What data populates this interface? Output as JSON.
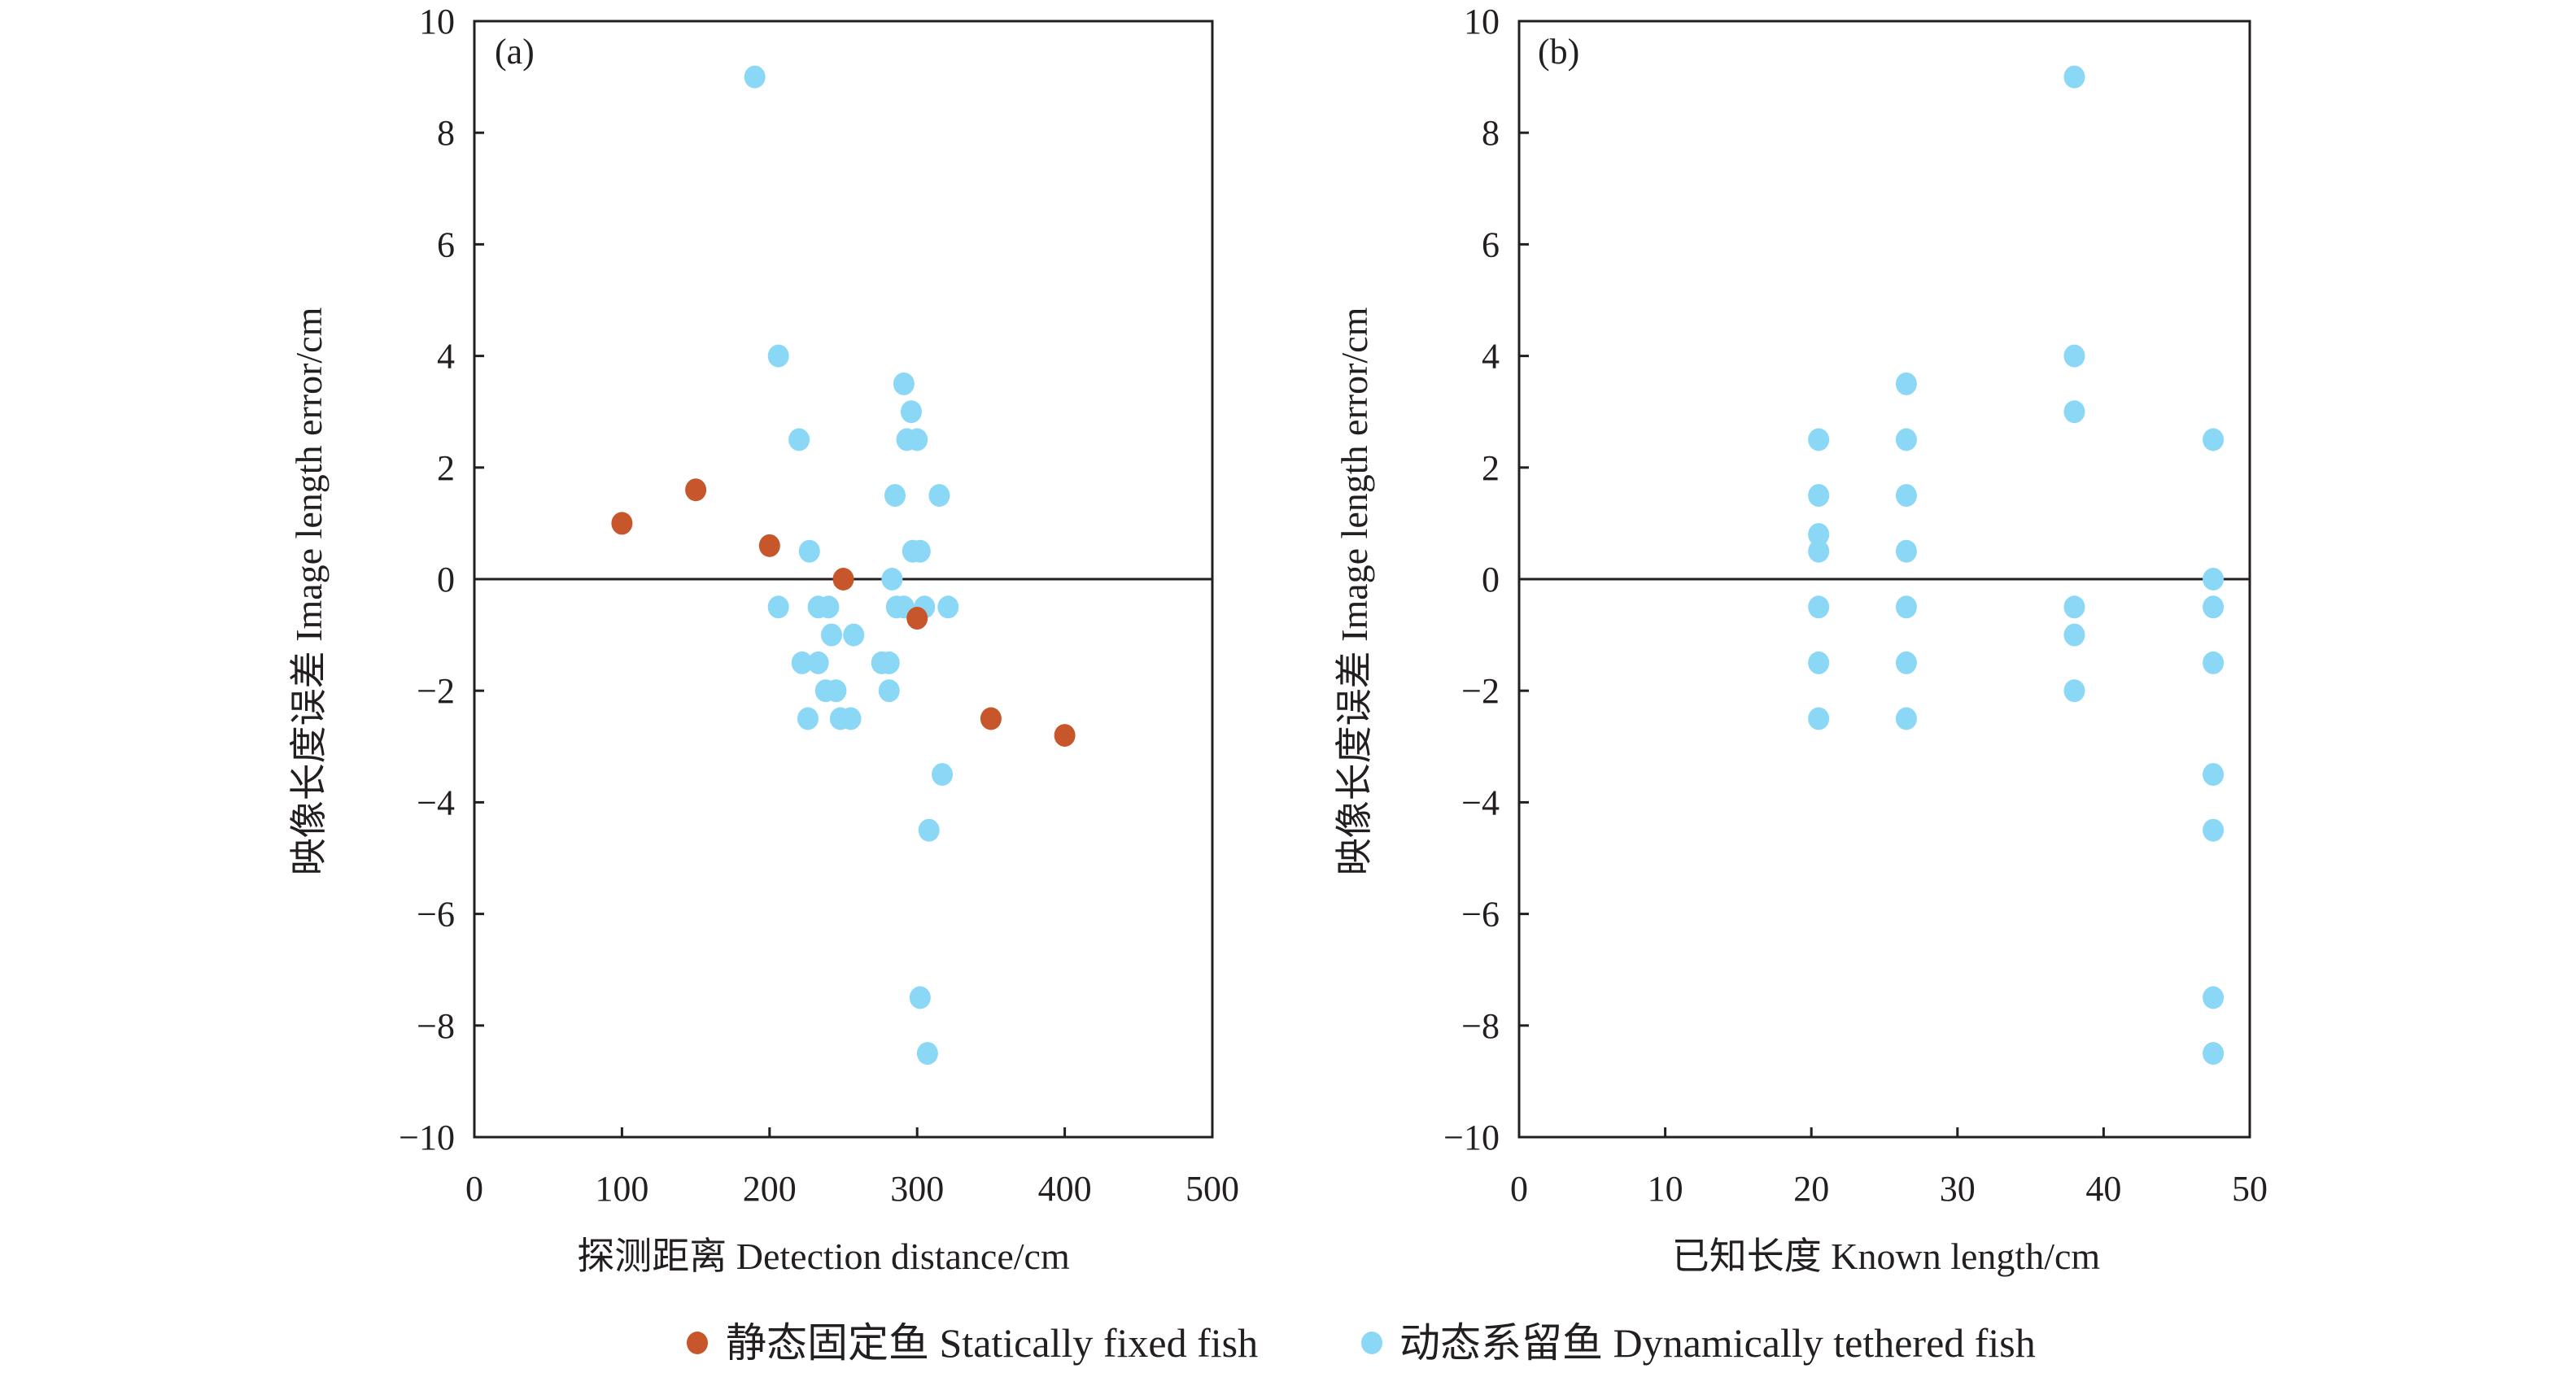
{
  "colors": {
    "static": "#C8562B",
    "dynamic": "#8AD8F5",
    "axis": "#231F20"
  },
  "legend": {
    "position": "bottom-center",
    "items": [
      {
        "key": "static",
        "label": "静态固定鱼 Statically fixed fish"
      },
      {
        "key": "dynamic",
        "label": "动态系留鱼 Dynamically tethered fish"
      }
    ]
  },
  "chart_data": [
    {
      "type": "scatter",
      "panel_label": "(a)",
      "title": "",
      "xlabel": "探测距离 Detection distance/cm",
      "ylabel": "映像长度误差 Image length error/cm",
      "xlim": [
        0,
        500
      ],
      "ylim": [
        -10,
        10
      ],
      "xticks": [
        0,
        100,
        200,
        300,
        400,
        500
      ],
      "yticks": [
        10,
        8,
        6,
        4,
        2,
        0,
        -2,
        -4,
        -6,
        -8,
        -10
      ],
      "ytick_labels": [
        "10",
        "8",
        "6",
        "4",
        "2",
        "0",
        "−2",
        "−4",
        "−6",
        "−8",
        "−10"
      ],
      "reference_line_y": 0,
      "grid": false,
      "series": [
        {
          "name": "静态固定鱼 Statically fixed fish",
          "key": "static",
          "points": [
            [
              100,
              1.0
            ],
            [
              150,
              1.6
            ],
            [
              200,
              0.6
            ],
            [
              250,
              0.0
            ],
            [
              300,
              -0.7
            ],
            [
              350,
              -2.5
            ],
            [
              400,
              -2.8
            ]
          ]
        },
        {
          "name": "动态系留鱼 Dynamically tethered fish",
          "key": "dynamic",
          "points": [
            [
              190,
              9.0
            ],
            [
              206,
              4.0
            ],
            [
              291,
              3.5
            ],
            [
              296,
              3.0
            ],
            [
              220,
              2.5
            ],
            [
              293,
              2.5
            ],
            [
              300,
              2.5
            ],
            [
              285,
              1.5
            ],
            [
              315,
              1.5
            ],
            [
              227,
              0.5
            ],
            [
              297,
              0.5
            ],
            [
              302,
              0.5
            ],
            [
              283,
              0.0
            ],
            [
              206,
              -0.5
            ],
            [
              233,
              -0.5
            ],
            [
              240,
              -0.5
            ],
            [
              286,
              -0.5
            ],
            [
              291,
              -0.5
            ],
            [
              305,
              -0.5
            ],
            [
              321,
              -0.5
            ],
            [
              242,
              -1.0
            ],
            [
              257,
              -1.0
            ],
            [
              222,
              -1.5
            ],
            [
              233,
              -1.5
            ],
            [
              276,
              -1.5
            ],
            [
              281,
              -1.5
            ],
            [
              238,
              -2.0
            ],
            [
              245,
              -2.0
            ],
            [
              281,
              -2.0
            ],
            [
              226,
              -2.5
            ],
            [
              248,
              -2.5
            ],
            [
              255,
              -2.5
            ],
            [
              317,
              -3.5
            ],
            [
              308,
              -4.5
            ],
            [
              302,
              -7.5
            ],
            [
              307,
              -8.5
            ]
          ]
        }
      ]
    },
    {
      "type": "scatter",
      "panel_label": "(b)",
      "title": "",
      "xlabel": "已知长度 Known length/cm",
      "ylabel": "映像长度误差 Image length error/cm",
      "xlim": [
        0,
        50
      ],
      "ylim": [
        -10,
        10
      ],
      "xticks": [
        0,
        10,
        20,
        30,
        40,
        50
      ],
      "yticks": [
        10,
        8,
        6,
        4,
        2,
        0,
        -2,
        -4,
        -6,
        -8,
        -10
      ],
      "ytick_labels": [
        "10",
        "8",
        "6",
        "4",
        "2",
        "0",
        "−2",
        "−4",
        "−6",
        "−8",
        "−10"
      ],
      "reference_line_y": 0,
      "grid": false,
      "series": [
        {
          "name": "动态系留鱼 Dynamically tethered fish",
          "key": "dynamic",
          "points": [
            [
              20.5,
              2.5
            ],
            [
              20.5,
              1.5
            ],
            [
              20.5,
              0.8
            ],
            [
              20.5,
              0.5
            ],
            [
              20.5,
              -0.5
            ],
            [
              20.5,
              -1.5
            ],
            [
              20.5,
              -2.5
            ],
            [
              26.5,
              3.5
            ],
            [
              26.5,
              2.5
            ],
            [
              26.5,
              1.5
            ],
            [
              26.5,
              0.5
            ],
            [
              26.5,
              -0.5
            ],
            [
              26.5,
              -1.5
            ],
            [
              26.5,
              -2.5
            ],
            [
              38.0,
              9.0
            ],
            [
              38.0,
              4.0
            ],
            [
              38.0,
              3.0
            ],
            [
              38.0,
              -0.5
            ],
            [
              38.0,
              -1.0
            ],
            [
              38.0,
              -2.0
            ],
            [
              47.5,
              2.5
            ],
            [
              47.5,
              0.0
            ],
            [
              47.5,
              -0.5
            ],
            [
              47.5,
              -1.5
            ],
            [
              47.5,
              -3.5
            ],
            [
              47.5,
              -4.5
            ],
            [
              47.5,
              -7.5
            ],
            [
              47.5,
              -8.5
            ]
          ]
        }
      ]
    }
  ]
}
